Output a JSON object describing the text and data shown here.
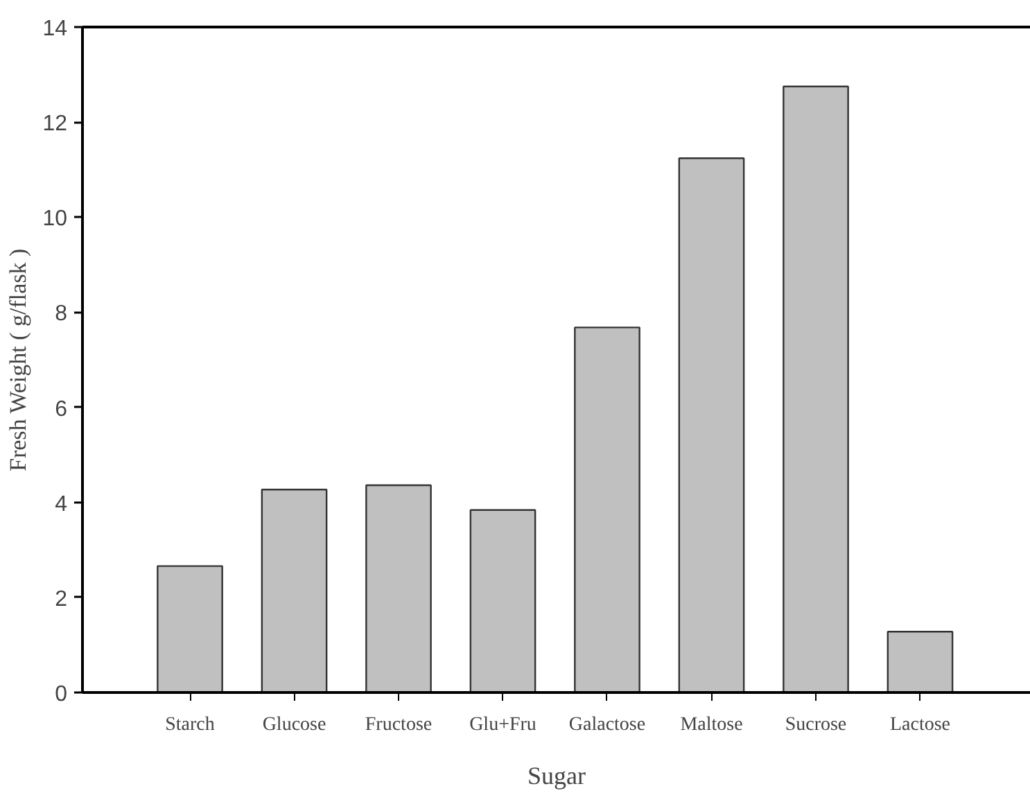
{
  "chart_data": {
    "type": "bar",
    "xlabel": "Sugar",
    "ylabel": "Fresh Weight ( g/flask )",
    "categories": [
      "Starch",
      "Glucose",
      "Fructose",
      "Glu+Fru",
      "Galactose",
      "Maltose",
      "Sucrose",
      "Lactose"
    ],
    "values": [
      2.66,
      4.27,
      4.36,
      3.84,
      7.68,
      11.24,
      12.75,
      1.28
    ],
    "color": "#c0c0c0",
    "ylim": [
      0,
      14
    ],
    "yticks": [
      0,
      2,
      4,
      6,
      8,
      10,
      12,
      14
    ],
    "grid": false
  }
}
